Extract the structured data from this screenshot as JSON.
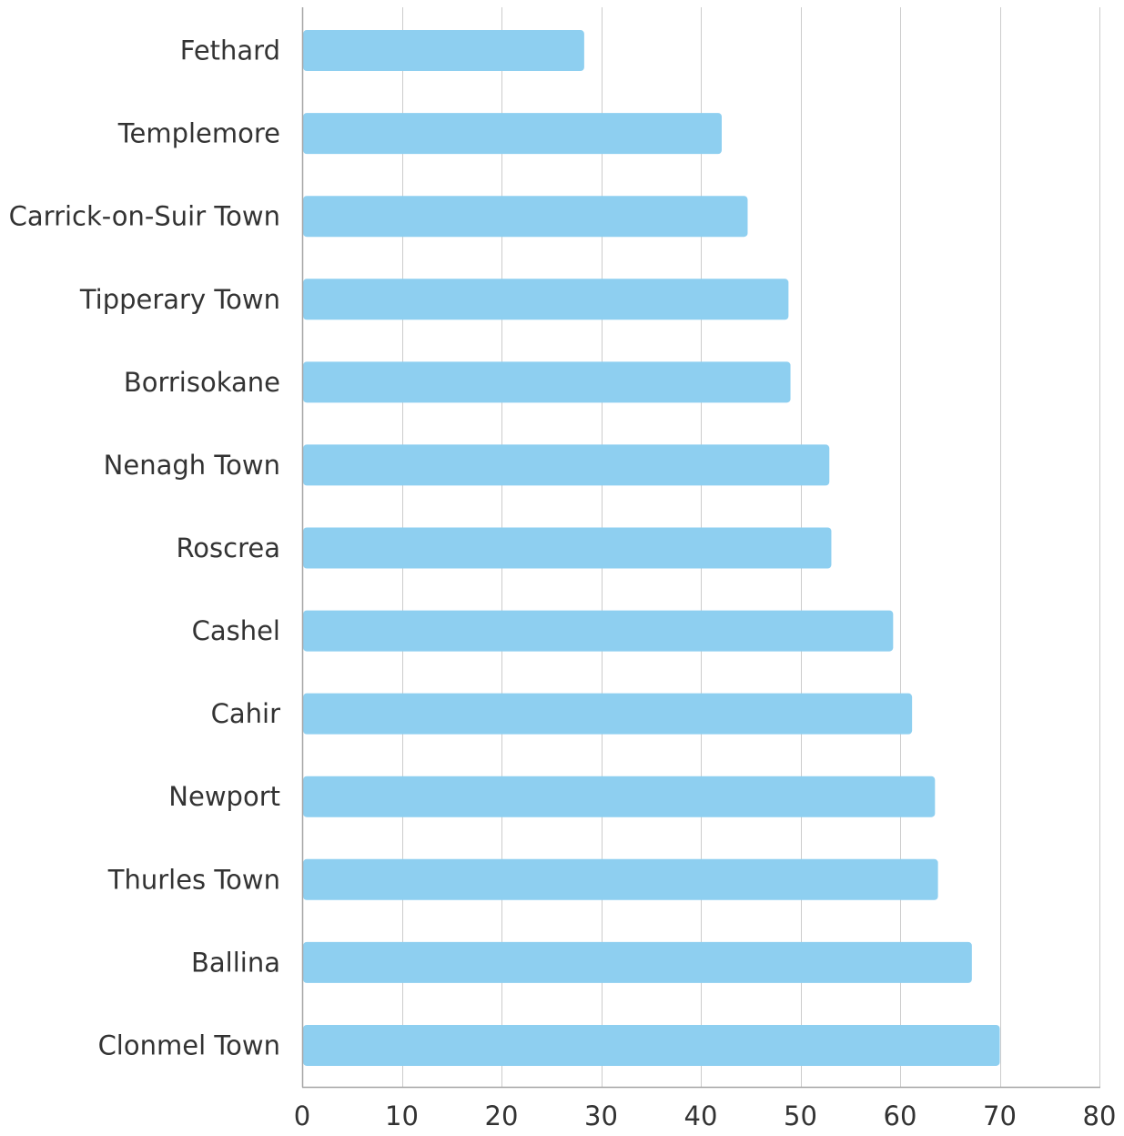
{
  "chart_data": {
    "type": "bar",
    "orientation": "horizontal",
    "categories": [
      "Fethard",
      "Templemore",
      "Carrick-on-Suir Town",
      "Tipperary Town",
      "Borrisokane",
      "Nenagh Town",
      "Roscrea",
      "Cashel",
      "Cahir",
      "Newport",
      "Thurles Town",
      "Ballina",
      "Clonmel Town"
    ],
    "values": [
      28.3,
      42.1,
      44.7,
      48.8,
      49.0,
      52.9,
      53.1,
      59.3,
      61.2,
      63.5,
      63.8,
      67.2,
      70.0
    ],
    "xlim": [
      0,
      80
    ],
    "x_ticks": [
      "0",
      "10",
      "20",
      "30",
      "40",
      "50",
      "60",
      "70",
      "80"
    ],
    "grid": "vertical",
    "bar_color": "#8ecff0",
    "grid_color": "#cccccc",
    "axis_color": "#a6a6a6",
    "text_color": "#333333"
  }
}
